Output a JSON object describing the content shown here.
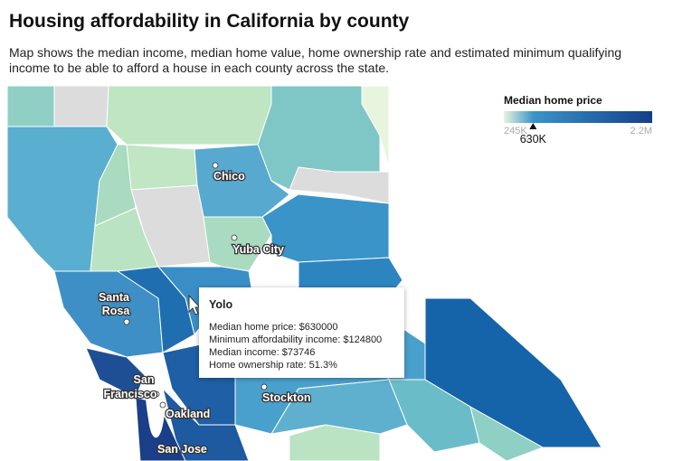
{
  "header": {
    "title": "Housing affordability in California by county",
    "subtitle": "Map shows the median income, median home value, home ownership rate and estimated minimum qualifying income to be able to afford a house in each county across the state."
  },
  "legend": {
    "title": "Median home price",
    "min": {
      "value": 245000,
      "label": "245K"
    },
    "max": {
      "value": 2200000,
      "label": "2.2M"
    },
    "marker": {
      "value": 630000,
      "label": "630K"
    }
  },
  "cities": [
    {
      "label": [
        "Chico"
      ]
    },
    {
      "label": [
        "Yuba City"
      ]
    },
    {
      "label": [
        "Santa",
        "Rosa"
      ]
    },
    {
      "label": [
        "San",
        "Francisco"
      ]
    },
    {
      "label": [
        "Oakland"
      ]
    },
    {
      "label": [
        "Stockton"
      ]
    },
    {
      "label": [
        "San Jose"
      ]
    }
  ],
  "tooltip": {
    "title": "Yolo",
    "lines": [
      "Median home price: $630000",
      "Minimum affordability income: $124800",
      "Median income: $73746",
      "Home ownership rate: 51.3%"
    ]
  }
}
